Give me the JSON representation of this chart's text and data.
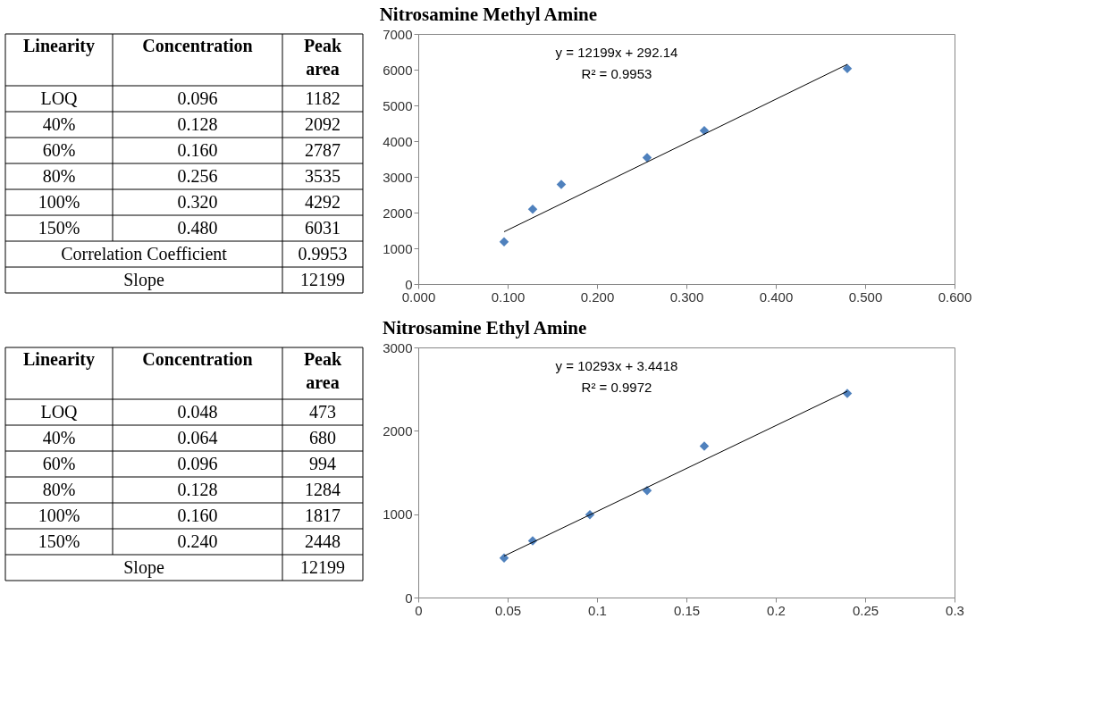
{
  "chart_data": [
    {
      "type": "scatter",
      "title": "Nitrosamine Methyl Amine",
      "x": [
        0.096,
        0.128,
        0.16,
        0.256,
        0.32,
        0.48
      ],
      "series": [
        {
          "color": "#4f81bd",
          "marker": "diamond",
          "values": [
            1182,
            2092,
            2787,
            3535,
            4292,
            6031
          ]
        },
        {
          "type": "line",
          "color": "#000000",
          "marker": "none",
          "x": [
            0.096,
            0.48
          ],
          "values": [
            1463,
            6148
          ]
        }
      ],
      "xlim": [
        0,
        0.6
      ],
      "xticks": [
        {
          "value": 0,
          "label": "0.000"
        },
        {
          "value": 0.1,
          "label": "0.100"
        },
        {
          "value": 0.2,
          "label": "0.200"
        },
        {
          "value": 0.3,
          "label": "0.300"
        },
        {
          "value": 0.4,
          "label": "0.400"
        },
        {
          "value": 0.5,
          "label": "0.500"
        },
        {
          "value": 0.6,
          "label": "0.600"
        }
      ],
      "ylim": [
        0,
        7000
      ],
      "yticks": [
        0,
        1000,
        2000,
        3000,
        4000,
        5000,
        6000,
        7000
      ],
      "grid": false,
      "annotations": [
        "y = 12199x + 292.14",
        "R² = 0.9953",
        "Linearity",
        "Concentration",
        "Peak area",
        "LOQ",
        "0.096",
        "1182",
        "40%",
        "0.128",
        "2092",
        "60%",
        "0.160",
        "2787",
        "80%",
        "0.256",
        "3535",
        "100%",
        "0.320",
        "4292",
        "150%",
        "0.480",
        "6031",
        "Correlation Coefficient",
        "0.9953",
        "Slope",
        "12199"
      ]
    },
    {
      "type": "scatter",
      "title": "Nitrosamine Ethyl Amine",
      "x": [
        0.048,
        0.064,
        0.096,
        0.128,
        0.16,
        0.24
      ],
      "series": [
        {
          "color": "#4f81bd",
          "marker": "diamond",
          "values": [
            473,
            680,
            994,
            1284,
            1817,
            2448
          ]
        },
        {
          "type": "line",
          "color": "#000000",
          "marker": "none",
          "x": [
            0.048,
            0.24
          ],
          "values": [
            498,
            2474
          ]
        }
      ],
      "xlim": [
        0,
        0.3
      ],
      "xticks": [
        0,
        0.05,
        0.1,
        0.15,
        0.2,
        0.25,
        0.3
      ],
      "ylim": [
        0,
        3000
      ],
      "yticks": [
        0,
        1000,
        2000,
        3000
      ],
      "grid": false,
      "annotations": [
        "y = 10293x + 3.4418",
        "R² = 0.9972",
        "Linearity",
        "Concentration",
        "Peak area",
        "LOQ",
        "0.048",
        "473",
        "40%",
        "0.064",
        "680",
        "60%",
        "0.096",
        "994",
        "80%",
        "0.128",
        "1284",
        "100%",
        "0.160",
        "1817",
        "150%",
        "0.240",
        "2448",
        "Slope",
        "12199"
      ]
    }
  ]
}
